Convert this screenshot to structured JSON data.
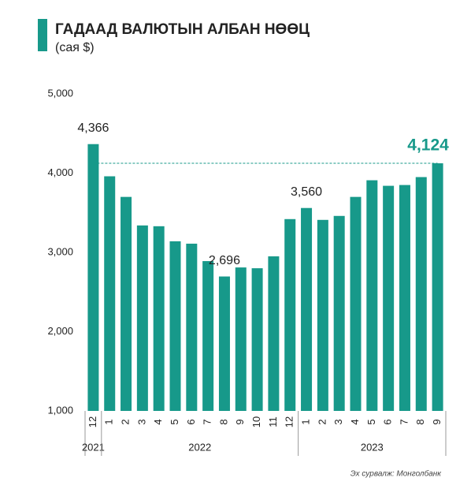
{
  "chart_data": {
    "type": "bar",
    "title": "ГАДААД ВАЛЮТЫН АЛБАН НӨӨЦ",
    "subtitle": "(сая $)",
    "source": "Эх сурвалж: Монголбанк",
    "categories": [
      "12",
      "1",
      "2",
      "3",
      "4",
      "5",
      "6",
      "7",
      "8",
      "9",
      "10",
      "11",
      "12",
      "1",
      "2",
      "3",
      "4",
      "5",
      "6",
      "7",
      "8",
      "9"
    ],
    "x_years": [
      "2021",
      "2022",
      "2022",
      "2022",
      "2022",
      "2022",
      "2022",
      "2022",
      "2022",
      "2022",
      "2022",
      "2022",
      "2022",
      "2023",
      "2023",
      "2023",
      "2023",
      "2023",
      "2023",
      "2023",
      "2023",
      "2023"
    ],
    "values": [
      4366,
      3960,
      3700,
      3340,
      3330,
      3140,
      3110,
      2890,
      2696,
      2810,
      2800,
      2950,
      3420,
      3560,
      3410,
      3460,
      3700,
      3910,
      3840,
      3850,
      3950,
      4124
    ],
    "value_labels": [
      "4,366",
      null,
      null,
      null,
      null,
      null,
      null,
      null,
      "2,696",
      null,
      null,
      null,
      null,
      "3,560",
      null,
      null,
      null,
      null,
      null,
      null,
      null,
      "4,124"
    ],
    "color": "#17998a",
    "ylim": [
      1000,
      5000
    ],
    "yticks": [
      {
        "value": 1000,
        "label": "1,000"
      },
      {
        "value": 2000,
        "label": "2,000"
      },
      {
        "value": 3000,
        "label": "3,000"
      },
      {
        "value": 4000,
        "label": "4,000"
      },
      {
        "value": 5000,
        "label": "5,000"
      }
    ],
    "grid": false
  }
}
